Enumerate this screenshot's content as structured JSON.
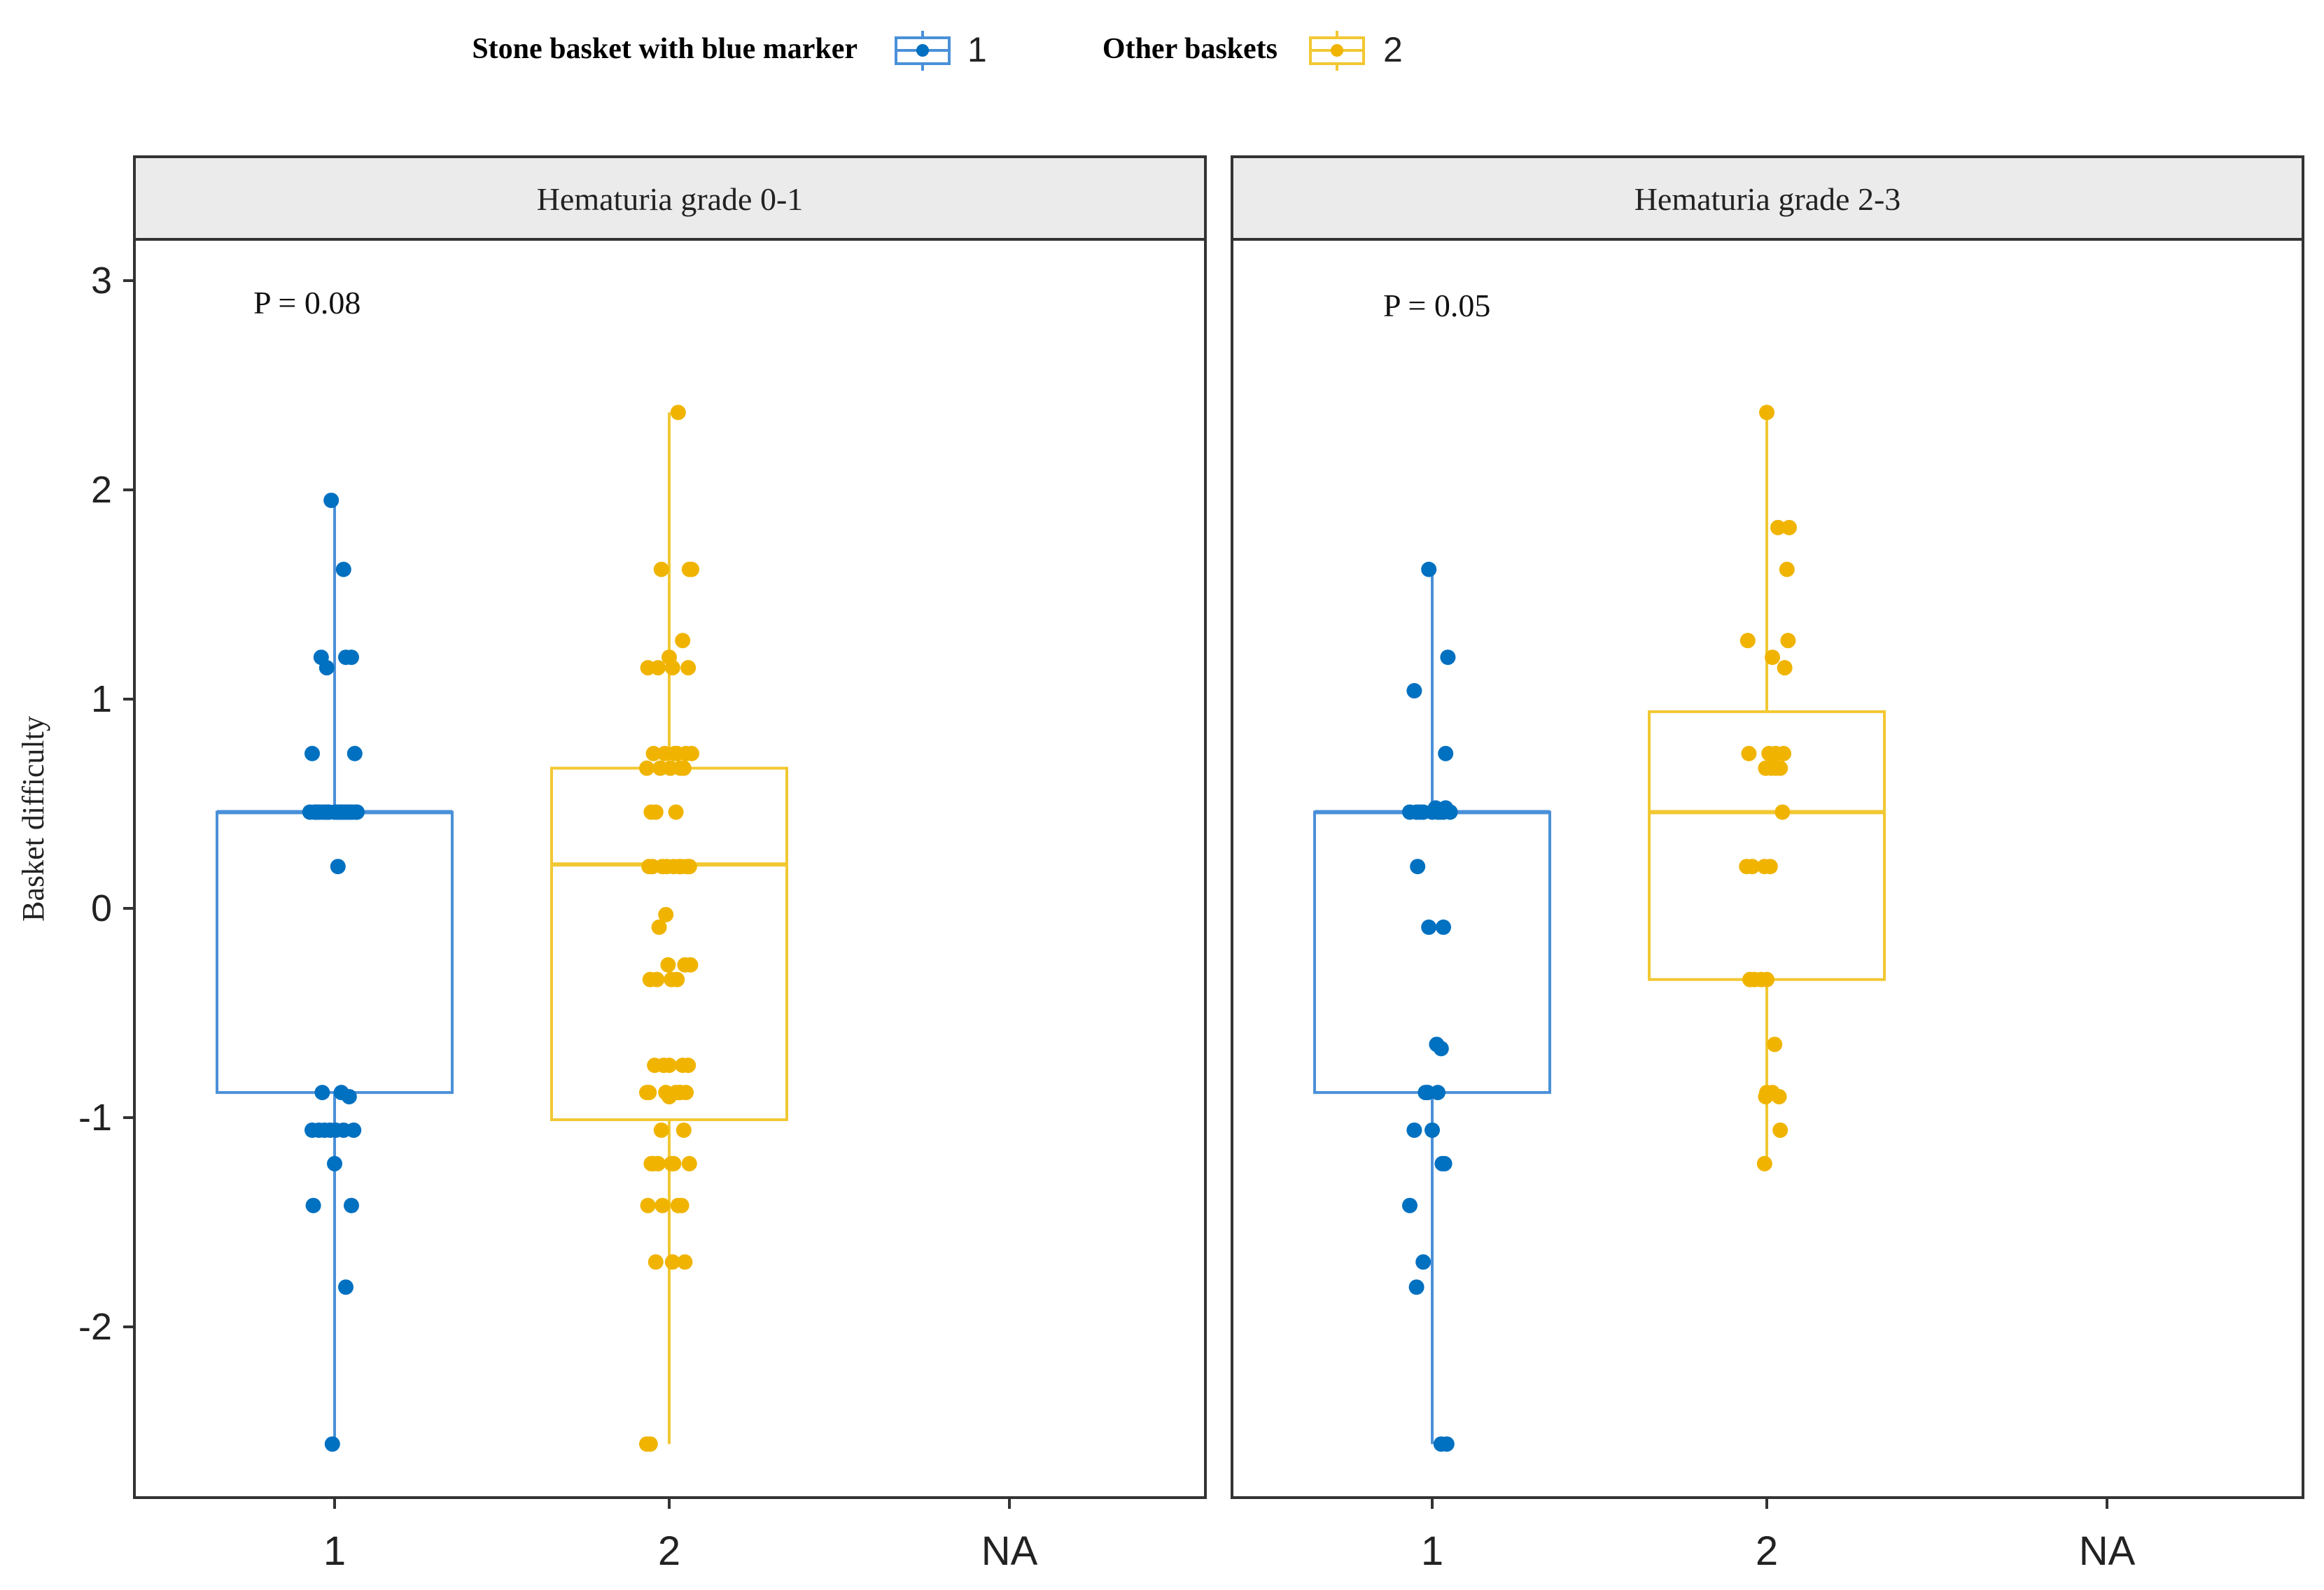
{
  "chart_data": {
    "type": "boxplot",
    "legend": {
      "position": "top",
      "entries": [
        {
          "title": "Stone basket with  blue marker",
          "key": "1",
          "color": "#0070c0",
          "line_color": "#4a90d9"
        },
        {
          "title": "Other baskets",
          "key": "2",
          "color": "#f0b400",
          "line_color": "#f2c832"
        }
      ]
    },
    "ylabel": "Basket difficulty",
    "ylim": [
      -2.8,
      3.0
    ],
    "yticks": [
      -2,
      -1,
      0,
      1,
      2,
      3
    ],
    "categories": [
      "1",
      "2",
      "NA"
    ],
    "panels": [
      {
        "title": "Hematuria  grade 0-1",
        "p_label": "P = 0.08",
        "boxes": [
          {
            "group": "1",
            "min": -2.56,
            "q1": -0.88,
            "median": 0.46,
            "q3": 0.46,
            "max": 1.95
          },
          {
            "group": "2",
            "min": -2.56,
            "q1": -1.01,
            "median": 0.21,
            "q3": 0.67,
            "max": 2.37
          }
        ],
        "points": [
          {
            "group": "1",
            "jitter": [
              -0.03,
              0.08,
              -0.12,
              0.15,
              -0.07,
              0.1,
              -0.2,
              0.18,
              0.02,
              -0.15,
              0.05,
              0.12,
              -0.1,
              0.07,
              -0.18,
              0.2,
              -0.05,
              0.09,
              0.0,
              -0.13,
              0.16,
              -0.22,
              0.04,
              0.11,
              -0.06,
              0.14,
              -0.08,
              0.19,
              -0.17,
              0.03,
              -0.11,
              0.06,
              0.13,
              -0.04,
              -0.2,
              0.17,
              -0.14,
              0.01,
              0.08,
              -0.09,
              0.0,
              0.15,
              -0.19,
              0.1,
              -0.02,
              0.05
            ],
            "values": [
              1.95,
              1.62,
              1.2,
              1.2,
              1.15,
              1.2,
              0.74,
              0.74,
              0.46,
              0.46,
              0.46,
              0.46,
              0.46,
              0.46,
              0.46,
              0.46,
              0.46,
              0.46,
              0.46,
              0.46,
              0.46,
              0.46,
              0.46,
              0.46,
              0.46,
              0.46,
              0.46,
              0.46,
              0.46,
              0.2,
              -0.88,
              -0.88,
              -0.9,
              -1.06,
              -1.06,
              -1.06,
              -1.06,
              -1.06,
              -1.06,
              -1.06,
              -1.22,
              -1.42,
              -1.42,
              -1.81,
              -2.56,
              0.46
            ]
          },
          {
            "group": "2",
            "jitter": [
              0.08,
              -0.03,
              0.2,
              0.18,
              -0.07,
              0.0,
              0.12,
              -0.1,
              0.03,
              0.17,
              -0.19,
              0.05,
              -0.14,
              0.2,
              0.07,
              -0.04,
              0.15,
              -0.2,
              0.1,
              -0.08,
              0.01,
              0.13,
              -0.16,
              0.06,
              -0.12,
              0.18,
              -0.02,
              0.09,
              -0.18,
              0.16,
              -0.06,
              0.04,
              -0.15,
              0.11,
              -0.09,
              0.14,
              -0.01,
              0.19,
              -0.17,
              0.02,
              0.07,
              -0.11,
              0.12,
              -0.05,
              0.17,
              -0.13,
              0.0,
              0.09,
              -0.2,
              0.15,
              -0.03,
              0.06,
              -0.18,
              0.1,
              -0.07,
              0.13,
              -0.14,
              0.04,
              0.18,
              -0.1,
              0.02,
              -0.16,
              0.08,
              -0.06,
              0.11,
              -0.19,
              0.03,
              0.14,
              -0.12,
              0.0,
              -0.2,
              -0.17
            ],
            "values": [
              2.37,
              -0.03,
              1.62,
              1.62,
              1.62,
              1.2,
              1.28,
              1.15,
              1.15,
              1.15,
              1.15,
              0.74,
              0.74,
              0.74,
              0.74,
              0.74,
              0.74,
              0.67,
              0.67,
              0.67,
              0.67,
              0.67,
              0.46,
              0.46,
              0.46,
              0.2,
              0.2,
              0.2,
              0.2,
              0.2,
              0.2,
              0.2,
              0.2,
              0.2,
              -0.09,
              -0.27,
              -0.27,
              -0.27,
              -0.34,
              -0.34,
              -0.34,
              -0.34,
              -0.75,
              -0.75,
              -0.75,
              -0.75,
              -0.75,
              -0.88,
              -0.88,
              -0.88,
              -0.88,
              -0.88,
              -0.88,
              -0.88,
              -1.06,
              -1.06,
              -1.22,
              -1.22,
              -1.22,
              -1.22,
              -1.22,
              -1.22,
              -1.42,
              -1.42,
              -1.42,
              -1.42,
              -1.69,
              -1.69,
              -1.69,
              -0.9,
              -2.56,
              -2.56
            ]
          }
        ]
      },
      {
        "title": "Hematuria  grade 2-3",
        "p_label": "P = 0.05",
        "boxes": [
          {
            "group": "1",
            "min": -2.56,
            "q1": -0.88,
            "median": 0.46,
            "q3": 0.46,
            "max": 1.62
          },
          {
            "group": "2",
            "min": -1.22,
            "q1": -0.34,
            "median": 0.46,
            "q3": 0.94,
            "max": 2.37
          }
        ],
        "points": [
          {
            "group": "1",
            "jitter": [
              -0.03,
              0.14,
              -0.16,
              0.12,
              -0.2,
              -0.11,
              0.05,
              0.1,
              -0.14,
              0.0,
              0.16,
              -0.08,
              0.03,
              0.07,
              0.12,
              -0.13,
              -0.03,
              0.1,
              -0.04,
              0.05,
              0.08,
              0.04,
              -0.16,
              0.0,
              0.09,
              0.11,
              -0.2,
              -0.08,
              -0.14,
              -0.06,
              0.08,
              0.13
            ],
            "values": [
              1.62,
              1.2,
              1.04,
              0.74,
              0.46,
              0.46,
              0.46,
              0.46,
              0.46,
              0.46,
              0.46,
              0.46,
              0.48,
              0.46,
              0.48,
              0.2,
              -0.09,
              -0.09,
              -0.88,
              -0.88,
              -0.67,
              -0.65,
              -1.06,
              -1.06,
              -1.22,
              -1.22,
              -1.42,
              -1.69,
              -1.81,
              -0.88,
              -2.56,
              -2.56
            ]
          },
          {
            "group": "2",
            "jitter": [
              0.0,
              0.1,
              0.2,
              -0.17,
              0.18,
              0.05,
              0.16,
              0.19,
              -0.16,
              0.02,
              0.15,
              0.08,
              -0.01,
              0.04,
              0.12,
              0.14,
              -0.02,
              0.03,
              -0.18,
              -0.13,
              -0.05,
              0.0,
              -0.11,
              -0.15,
              0.07,
              0.0,
              0.05,
              -0.01,
              0.12,
              0.11,
              -0.02,
              0.08
            ],
            "values": [
              2.37,
              1.82,
              1.82,
              1.28,
              1.62,
              1.2,
              1.15,
              1.28,
              0.74,
              0.74,
              0.74,
              0.67,
              0.67,
              0.67,
              0.67,
              0.46,
              0.2,
              0.2,
              0.2,
              0.2,
              -0.34,
              -0.34,
              -0.34,
              -0.34,
              -0.65,
              -0.88,
              -0.88,
              -0.9,
              -1.06,
              -0.9,
              -1.22,
              0.74
            ]
          }
        ]
      }
    ]
  }
}
